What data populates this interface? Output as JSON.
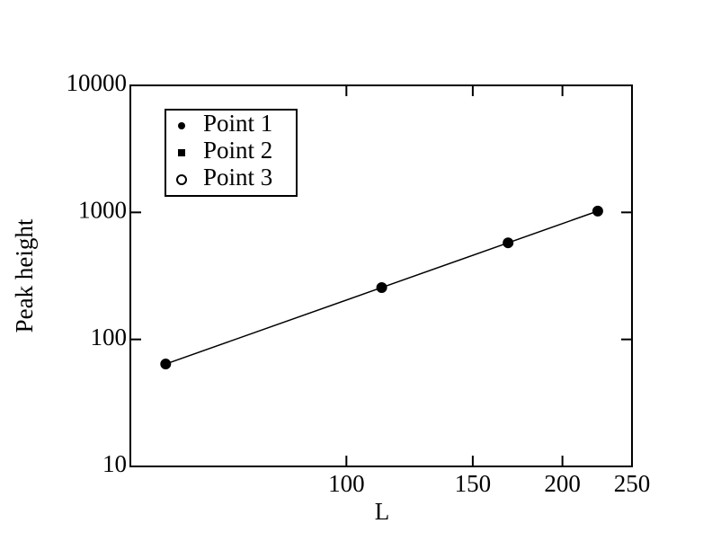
{
  "chart_data": {
    "type": "scatter",
    "xlabel": "L",
    "ylabel": "Peak height",
    "xscale": "log",
    "yscale": "log",
    "xlim": [
      50,
      250
    ],
    "ylim": [
      10,
      10000
    ],
    "xticks": [
      100,
      150,
      200,
      250
    ],
    "yticks": [
      10,
      100,
      1000,
      10000
    ],
    "legend": "upper left",
    "series": [
      {
        "name": "Point 1",
        "color": "#000000",
        "marker": "filled-circle",
        "x": [
          56,
          112,
          168,
          224
        ],
        "values": [
          64,
          256,
          576,
          1024
        ]
      },
      {
        "name": "Point 2",
        "color": "#000000",
        "marker": "filled-square",
        "x": [
          56,
          112,
          168,
          224
        ],
        "values": [
          64,
          256,
          576,
          1024
        ]
      },
      {
        "name": "Point 3",
        "color": "#000000",
        "marker": "open-circle",
        "line": true,
        "x": [
          56,
          112,
          168,
          224
        ],
        "values": [
          64,
          256,
          576,
          1024
        ]
      }
    ]
  }
}
